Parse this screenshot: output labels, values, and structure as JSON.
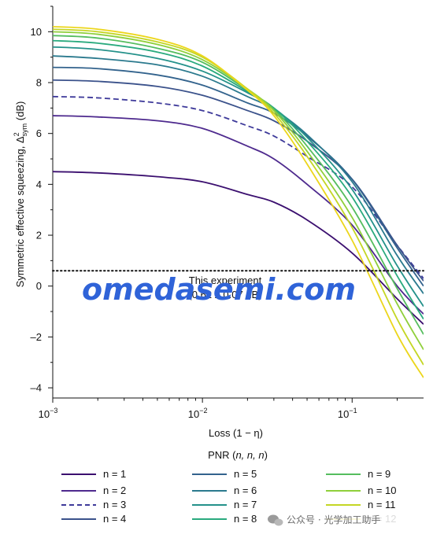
{
  "chart_data": {
    "type": "line",
    "xlabel": "Loss (1 − η)",
    "ylabel": "Symmetric effective squeezing, Δ²sym (dB)",
    "ylabel_main": "Symmetric effective squeezing, Δ",
    "ylabel_sup": "2",
    "ylabel_sub": "sym",
    "ylabel_unit": " (dB)",
    "xscale": "log",
    "xlim": [
      0.001,
      0.3
    ],
    "ylim": [
      -4.4,
      11
    ],
    "xticks": [
      {
        "value": 0.001,
        "base": "10",
        "exp": "−3"
      },
      {
        "value": 0.01,
        "base": "10",
        "exp": "−2"
      },
      {
        "value": 0.1,
        "base": "10",
        "exp": "−1"
      }
    ],
    "yticks": [
      10,
      8,
      6,
      4,
      2,
      0,
      -2,
      -4
    ],
    "ytick_labels": [
      "10",
      "8",
      "6",
      "4",
      "2",
      "0",
      "–2",
      "–4"
    ],
    "x": [
      0.001,
      0.002,
      0.005,
      0.01,
      0.02,
      0.03,
      0.05,
      0.1,
      0.2,
      0.3
    ],
    "series": [
      {
        "name": "n = 1",
        "color": "#3b0f6f",
        "dash": false,
        "y": [
          4.5,
          4.45,
          4.3,
          4.1,
          3.6,
          3.3,
          2.6,
          1.3,
          -0.5,
          -1.5
        ]
      },
      {
        "name": "n = 2",
        "color": "#4e2a8e",
        "dash": false,
        "y": [
          6.7,
          6.65,
          6.5,
          6.2,
          5.5,
          5.0,
          4.0,
          2.4,
          0.0,
          -1.1
        ]
      },
      {
        "name": "n = 3",
        "color": "#3e3a9a",
        "dash": true,
        "y": [
          7.45,
          7.4,
          7.2,
          6.9,
          6.3,
          5.9,
          5.1,
          3.9,
          1.6,
          0.3
        ]
      },
      {
        "name": "n = 4",
        "color": "#3b528b",
        "dash": false,
        "y": [
          8.1,
          8.05,
          7.85,
          7.5,
          6.9,
          6.5,
          5.7,
          4.2,
          1.6,
          0.2
        ]
      },
      {
        "name": "n = 5",
        "color": "#33638d",
        "dash": false,
        "y": [
          8.6,
          8.55,
          8.3,
          7.9,
          7.2,
          6.8,
          5.9,
          4.2,
          1.5,
          0.0
        ]
      },
      {
        "name": "n = 6",
        "color": "#2b7a8e",
        "dash": false,
        "y": [
          9.05,
          8.95,
          8.7,
          8.25,
          7.45,
          6.95,
          5.95,
          4.1,
          1.2,
          -0.3
        ]
      },
      {
        "name": "n = 7",
        "color": "#24918a",
        "dash": false,
        "y": [
          9.4,
          9.3,
          8.95,
          8.45,
          7.6,
          7.0,
          5.85,
          3.8,
          0.8,
          -0.8
        ]
      },
      {
        "name": "n = 8",
        "color": "#2aaa7e",
        "dash": false,
        "y": [
          9.65,
          9.55,
          9.2,
          8.65,
          7.65,
          7.0,
          5.7,
          3.5,
          0.4,
          -1.3
        ]
      },
      {
        "name": "n = 9",
        "color": "#55bd5e",
        "dash": false,
        "y": [
          9.85,
          9.75,
          9.35,
          8.8,
          7.7,
          6.95,
          5.5,
          3.1,
          -0.1,
          -1.9
        ]
      },
      {
        "name": "n = 10",
        "color": "#8fcf3a",
        "dash": false,
        "y": [
          10.0,
          9.9,
          9.5,
          8.9,
          7.75,
          6.9,
          5.3,
          2.7,
          -0.7,
          -2.5
        ]
      },
      {
        "name": "n = 11",
        "color": "#c4d624",
        "dash": false,
        "y": [
          10.1,
          10.0,
          9.6,
          9.0,
          7.75,
          6.8,
          5.1,
          2.3,
          -1.3,
          -3.1
        ]
      },
      {
        "name": "n = 12",
        "color": "#ecd61b",
        "dash": false,
        "y": [
          10.2,
          10.1,
          9.7,
          9.05,
          7.7,
          6.7,
          4.8,
          1.8,
          -1.9,
          -3.6
        ]
      }
    ],
    "reference_line": {
      "y": 0.6,
      "style": "dotted",
      "label": "This experiment"
    },
    "legend_title": "PNR (n, n, n)",
    "legend_title_base": "PNR (",
    "legend_title_vars": "n, n, n",
    "legend_title_close": ")",
    "legend_placement": "bottom",
    "grid": false
  },
  "overlays": {
    "watermark": "omedasemi.com",
    "annotation_obscured": "(0.62 ± 0.07 dB)",
    "wechat_label": "公众号 · 光学加工助手"
  }
}
